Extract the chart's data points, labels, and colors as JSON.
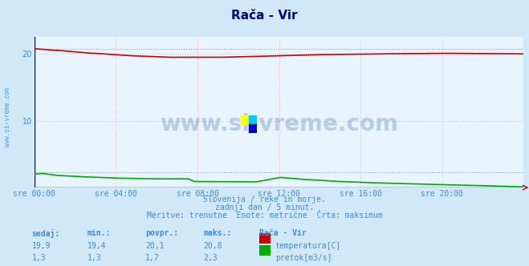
{
  "title": "Rača - Vir",
  "bg_color": "#d0e8f8",
  "plot_bg_color": "#e8f4ff",
  "grid_color": "#ffb0b0",
  "grid_style": "dotted",
  "x_ticks_labels": [
    "sre 00:00",
    "sre 04:00",
    "sre 08:00",
    "sre 12:00",
    "sre 16:00",
    "sre 20:00"
  ],
  "x_ticks_pos": [
    0,
    288,
    576,
    864,
    1152,
    1440
  ],
  "x_max": 1728,
  "ylim": [
    0,
    22.5
  ],
  "yticks": [
    10,
    20
  ],
  "temp_min": 19.4,
  "temp_max": 20.8,
  "temp_avg": 20.1,
  "temp_current": 19.9,
  "flow_min": 1.3,
  "flow_max": 2.3,
  "flow_avg": 1.7,
  "flow_current": 1.3,
  "temp_color": "#cc0000",
  "flow_color": "#00aa00",
  "blue_line_color": "#0000cc",
  "dotted_temp_color": "#ff6666",
  "dotted_flow_color": "#44cc44",
  "title_color": "#000088",
  "axis_label_color": "#4488cc",
  "watermark_color": "#2255aa",
  "subtitle_lines": [
    "Slovenija / reke in morje.",
    "zadnji dan / 5 minut.",
    "Meritve: trenutne  Enote: metrične  Črta: maksimum"
  ],
  "table_headers": [
    "sedaj:",
    "min.:",
    "povpr.:",
    "maks.:",
    "Rača - Vir"
  ],
  "table_row1": [
    "19,9",
    "19,4",
    "20,1",
    "20,8"
  ],
  "table_row2": [
    "1,3",
    "1,3",
    "1,7",
    "2,3"
  ],
  "legend_labels": [
    "temperatura[C]",
    "pretok[m3/s]"
  ],
  "legend_colors": [
    "#cc0000",
    "#00aa00"
  ],
  "side_text": "www.si-vreme.com",
  "watermark_text": "www.si-vreme.com",
  "logo_colors": [
    "#ffff00",
    "#00ccff",
    "#0000cc"
  ]
}
